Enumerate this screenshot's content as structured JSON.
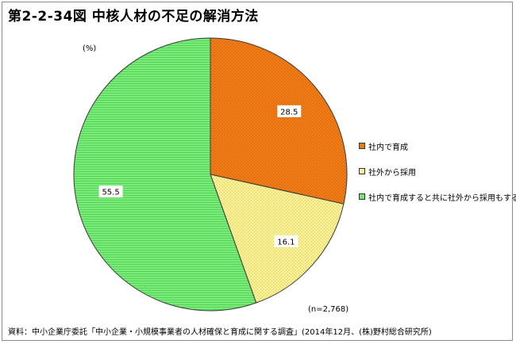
{
  "title": "第2-2-34図 中核人材の不足の解消方法",
  "unit_label": "(%)",
  "sample_label": "(n=2,768)",
  "source": "資料：中小企業庁委託「中小企業・小規模事業者の人材確保と育成に関する調査」(2014年12月、(株)野村総合研究所)",
  "colors": {
    "in_house": "#f07b12",
    "external": "#f6f09a",
    "both": "#72e872",
    "stroke": "#3a3a3a"
  },
  "chart_data": {
    "type": "pie",
    "unit": "%",
    "slices": [
      {
        "label": "社内で育成",
        "value": 28.5,
        "value_label": "28.5",
        "color": "#f07b12"
      },
      {
        "label": "社外から採用",
        "value": 16.1,
        "value_label": "16.1",
        "color": "#f6f09a"
      },
      {
        "label": "社内で育成すると共に社外から採用もする",
        "value": 55.5,
        "value_label": "55.5",
        "color": "#72e872"
      }
    ],
    "legend_position": "right"
  }
}
